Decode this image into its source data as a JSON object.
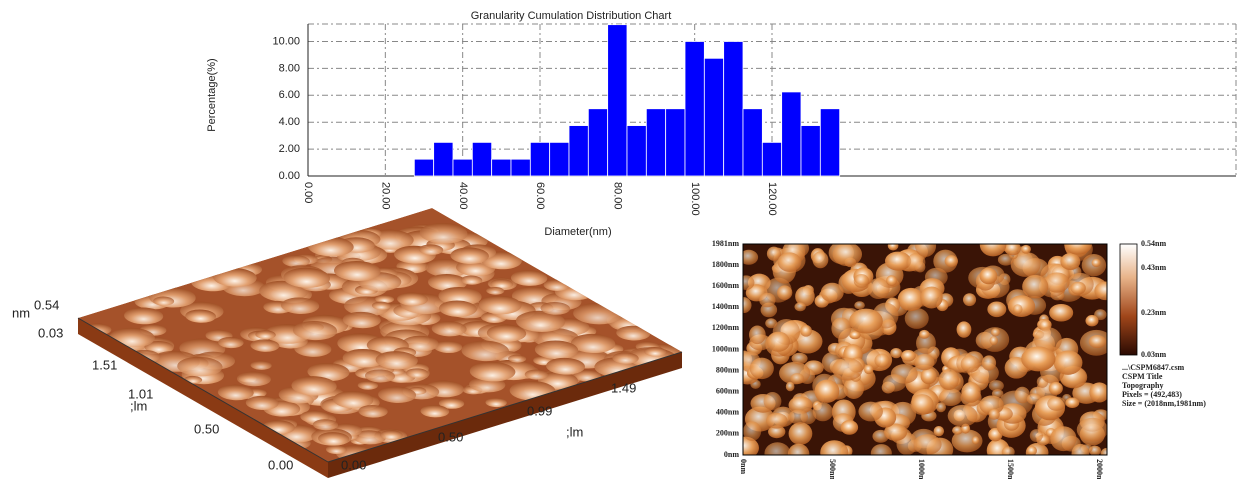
{
  "chart_data": {
    "type": "histogram",
    "title": "Granularity Cumulation Distribution  Chart",
    "x_label": "Diameter(nm)",
    "y_label": "Percentage(%)",
    "bins": [
      27.5,
      32.5,
      37.5,
      42.5,
      47.5,
      52.5,
      57.5,
      62.5,
      67.5,
      72.5,
      77.5,
      82.5,
      87.5,
      92.5,
      97.5,
      102.5,
      107.5,
      112.5,
      117.5,
      122.5,
      127.5,
      132.5,
      137.5
    ],
    "values": [
      1.25,
      2.5,
      1.25,
      2.5,
      1.25,
      1.25,
      2.5,
      2.5,
      3.75,
      5,
      11.25,
      3.75,
      5,
      5,
      10,
      8.75,
      10,
      5,
      2.5,
      6.25,
      3.75,
      5
    ],
    "color": "#0000ff",
    "xlim": [
      0,
      240
    ],
    "ylim": [
      0,
      11.3
    ],
    "xticks": [
      {
        "value": 0,
        "label": "0.00"
      },
      {
        "value": 20,
        "label": "20.00"
      },
      {
        "value": 40,
        "label": "40.00"
      },
      {
        "value": 60,
        "label": "60.00"
      },
      {
        "value": 80,
        "label": "80.00"
      },
      {
        "value": 100,
        "label": "100.00"
      },
      {
        "value": 120,
        "label": "120.00"
      }
    ],
    "yticks": [
      {
        "value": 0,
        "label": "0.00"
      },
      {
        "value": 2,
        "label": "2.00"
      },
      {
        "value": 4,
        "label": "4.00"
      },
      {
        "value": 6,
        "label": "6.00"
      },
      {
        "value": 8,
        "label": "8.00"
      },
      {
        "value": 10,
        "label": "10.00"
      }
    ],
    "grid": true
  },
  "surface_3d": {
    "z_unit": "nm",
    "z_labels": [
      "0.54",
      "0.03"
    ],
    "y_labels": [
      "1.51",
      "1.01",
      "0.50",
      "0.00"
    ],
    "y_unit": ";lm",
    "x_labels": [
      "0.00",
      "0.50",
      "0.99",
      "1.49"
    ],
    "x_unit": ";lm"
  },
  "topography_2d": {
    "y_labels": [
      "1981nm",
      "1800nm",
      "1600nm",
      "1400nm",
      "1200nm",
      "1000nm",
      "800nm",
      "600nm",
      "400nm",
      "200nm",
      "0nm"
    ],
    "x_labels": [
      "0nm",
      "500nm",
      "1000nm",
      "1500nm",
      "2000nm"
    ],
    "colorbar_labels": [
      "0.54nm",
      "0.43nm",
      "0.23nm",
      "0.03nm"
    ],
    "info": [
      "...\\CSPM6847.csm",
      "CSPM Title",
      "Topography",
      "Pixels = (492,483)",
      "Size = (2018nm,1981nm)"
    ]
  }
}
